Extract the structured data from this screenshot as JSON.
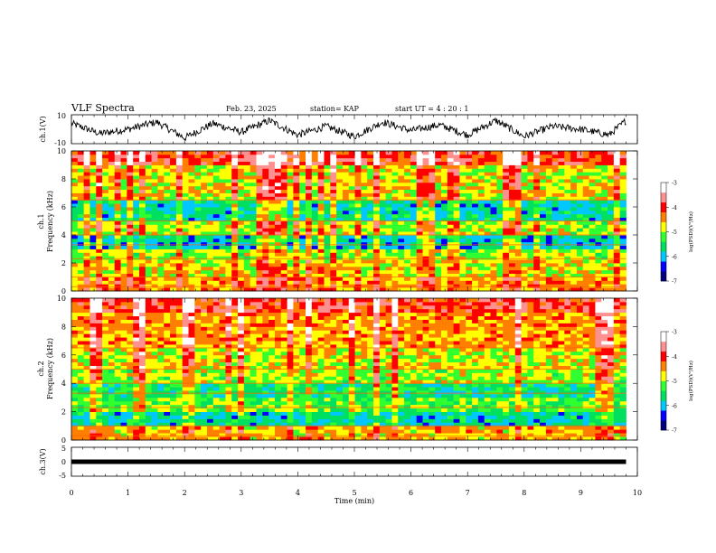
{
  "header": {
    "title": "VLF Spectra",
    "date": "Feb. 23, 2025",
    "station": "station= KAP",
    "start": "start  UT =   4 : 20 : 1"
  },
  "panels": {
    "ch1_wave_label": "ch.1(V)",
    "ch1_spec_label": "ch.1",
    "ch2_spec_label": "ch.2",
    "ch3_label": "ch.3(V)",
    "freq_label": "Frequency  (kHz)",
    "x_label": "Time  (min)"
  },
  "colorbar": {
    "label": "log(PSD)(V²/Hz)",
    "ticks": [
      "-3",
      "-4",
      "-5",
      "-6",
      "-7"
    ],
    "colors": [
      "#000080",
      "#0000ff",
      "#00c8ff",
      "#00e060",
      "#30ff30",
      "#ffff00",
      "#ff8000",
      "#ff0000",
      "#ff9090",
      "#ffffff"
    ]
  },
  "chart_data": [
    {
      "type": "line",
      "name": "ch1-waveform",
      "ylabel": "ch.1(V)",
      "ylim": [
        -10,
        10
      ],
      "xlim": [
        0,
        10
      ],
      "yticks": [
        "10",
        "-10"
      ],
      "x": [
        0,
        0.5,
        1,
        1.5,
        2,
        2.5,
        3,
        3.5,
        4,
        4.5,
        5,
        5.5,
        6,
        6.5,
        7,
        7.5,
        8,
        8.5,
        9,
        9.5,
        9.8
      ],
      "y": [
        4,
        -3,
        0,
        5,
        -6,
        4,
        -2,
        6,
        -4,
        2,
        -5,
        5,
        -1,
        3,
        -4,
        6,
        -5,
        2,
        0,
        -4,
        6
      ]
    },
    {
      "type": "heatmap",
      "name": "ch1-spectrogram",
      "ylabel": "Frequency (kHz)",
      "ylim": [
        0,
        10
      ],
      "xlim": [
        0,
        10
      ],
      "yticks": [
        "0",
        "2",
        "4",
        "6",
        "8",
        "10"
      ],
      "zlabel": "log(PSD)(V²/Hz)",
      "zlim": [
        -7,
        -3
      ],
      "freq_bands": [
        0.3,
        1.0,
        2.2,
        3.0,
        4.0,
        5.0,
        6.5,
        9.0
      ],
      "band_levels": [
        -4.5,
        -4.8,
        -5.0,
        -5.9,
        -5.0,
        -5.8,
        -4.8,
        -4.0
      ]
    },
    {
      "type": "heatmap",
      "name": "ch2-spectrogram",
      "ylabel": "Frequency (kHz)",
      "ylim": [
        0,
        10
      ],
      "xlim": [
        0,
        10
      ],
      "yticks": [
        "0",
        "2",
        "4",
        "6",
        "8",
        "10"
      ],
      "zlabel": "log(PSD)(V²/Hz)",
      "zlim": [
        -7,
        -3
      ],
      "freq_bands": [
        0.3,
        1.0,
        2.0,
        3.0,
        4.0,
        5.0,
        6.5,
        9.0
      ],
      "band_levels": [
        -4.6,
        -5.8,
        -5.2,
        -5.6,
        -5.0,
        -4.8,
        -4.5,
        -4.0
      ]
    },
    {
      "type": "line",
      "name": "ch3-waveform",
      "ylabel": "ch.3(V)",
      "ylim": [
        -5,
        5
      ],
      "xlim": [
        0,
        10
      ],
      "yticks": [
        "5",
        "0",
        "-5"
      ],
      "x": [
        0,
        9.8
      ],
      "y": [
        0,
        0
      ]
    }
  ],
  "x_axis": {
    "label": "Time  (min)",
    "ticks": [
      "0",
      "1",
      "2",
      "3",
      "4",
      "5",
      "6",
      "7",
      "8",
      "9",
      "10"
    ]
  }
}
